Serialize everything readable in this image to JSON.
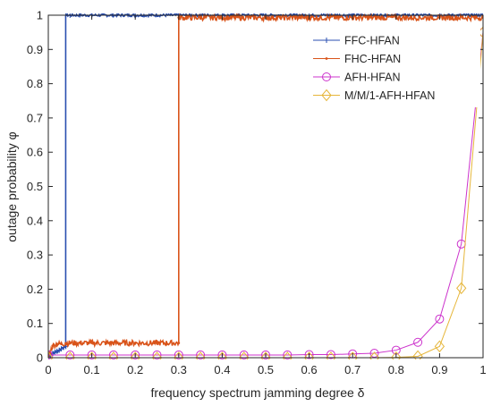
{
  "chart_data": {
    "type": "line",
    "xlabel": "frequency spectrum jamming degree δ",
    "ylabel": "outage probability φ",
    "xlim": [
      0,
      1
    ],
    "ylim": [
      0,
      1
    ],
    "x_ticks": [
      0,
      0.1,
      0.2,
      0.3,
      0.4,
      0.5,
      0.6,
      0.7,
      0.8,
      0.9,
      1
    ],
    "x_tick_labels": [
      "0",
      "0.1",
      "0.2",
      "0.3",
      "0.4",
      "0.5",
      "0.6",
      "0.7",
      "0.8",
      "0.9",
      "1"
    ],
    "y_ticks": [
      0,
      0.1,
      0.2,
      0.3,
      0.4,
      0.5,
      0.6,
      0.7,
      0.8,
      0.9,
      1
    ],
    "y_tick_labels": [
      "0",
      "0.1",
      "0.2",
      "0.3",
      "0.4",
      "0.5",
      "0.6",
      "0.7",
      "0.8",
      "0.9",
      "1"
    ],
    "grid": false,
    "legend_position": "top-right",
    "series": [
      {
        "name": "FFC-HFAN",
        "color": "#2a4fb0",
        "marker": "plus",
        "x": [
          0,
          0.005,
          0.01,
          0.015,
          0.02,
          0.025,
          0.03,
          0.035,
          0.04,
          0.04,
          0.05,
          0.1,
          0.2,
          0.3,
          0.4,
          0.5,
          0.6,
          0.7,
          0.8,
          0.9,
          1
        ],
        "y": [
          0.005,
          0.008,
          0.012,
          0.016,
          0.019,
          0.022,
          0.026,
          0.03,
          0.033,
          1.0,
          1.0,
          1.0,
          1.0,
          1.0,
          1.0,
          1.0,
          1.0,
          1.0,
          1.0,
          1.0,
          1.0
        ],
        "noise": 0.004
      },
      {
        "name": "FHC-HFAN",
        "color": "#d9541a",
        "marker": "dot",
        "x": [
          0,
          0.01,
          0.02,
          0.03,
          0.04,
          0.05,
          0.1,
          0.15,
          0.2,
          0.25,
          0.3,
          0.3,
          0.4,
          0.5,
          0.6,
          0.7,
          0.8,
          0.9,
          1
        ],
        "y": [
          0.005,
          0.035,
          0.04,
          0.04,
          0.042,
          0.043,
          0.043,
          0.043,
          0.043,
          0.043,
          0.043,
          0.993,
          0.993,
          0.993,
          0.993,
          0.993,
          0.993,
          0.993,
          0.993
        ],
        "noise": 0.008
      },
      {
        "name": "AFH-HFAN",
        "color": "#cc33cc",
        "marker": "circle",
        "x": [
          0,
          0.05,
          0.1,
          0.15,
          0.2,
          0.25,
          0.3,
          0.35,
          0.4,
          0.45,
          0.5,
          0.55,
          0.6,
          0.65,
          0.7,
          0.75,
          0.8,
          0.85,
          0.9,
          0.95,
          1
        ],
        "y": [
          0.008,
          0.008,
          0.008,
          0.008,
          0.008,
          0.008,
          0.008,
          0.008,
          0.008,
          0.008,
          0.008,
          0.008,
          0.009,
          0.009,
          0.011,
          0.013,
          0.022,
          0.045,
          0.113,
          0.332,
          0.95
        ]
      },
      {
        "name": "M/M/1-AFH-HFAN",
        "color": "#e6b63a",
        "marker": "diamond",
        "x": [
          0,
          0.05,
          0.1,
          0.15,
          0.2,
          0.25,
          0.3,
          0.35,
          0.4,
          0.45,
          0.5,
          0.55,
          0.6,
          0.65,
          0.7,
          0.75,
          0.8,
          0.85,
          0.9,
          0.95,
          1
        ],
        "y": [
          0.0,
          0.0,
          0.0,
          0.0,
          0.0,
          0.0,
          0.0,
          0.0,
          0.0,
          0.0,
          0.0,
          0.0,
          0.0,
          0.0,
          0.0,
          0.0,
          0.001,
          0.004,
          0.033,
          0.203,
          0.95
        ]
      }
    ]
  }
}
